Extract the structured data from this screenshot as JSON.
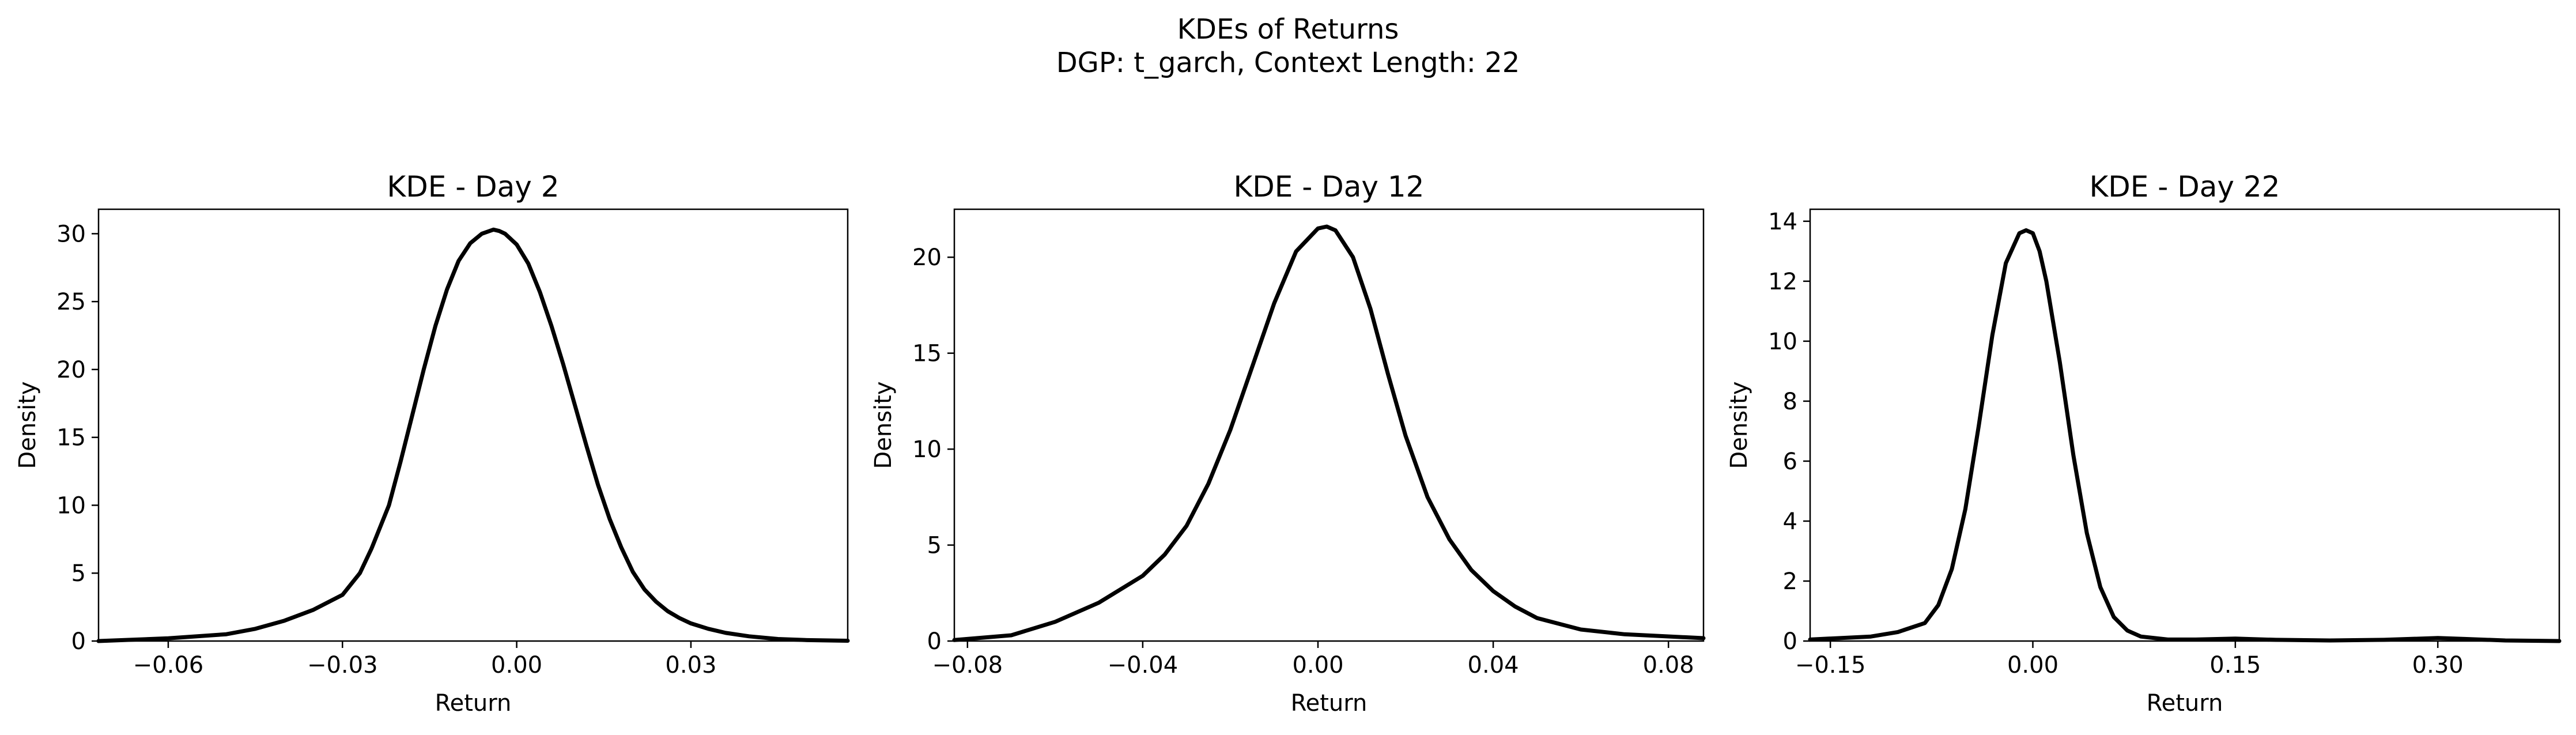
{
  "figure": {
    "title_line1": "KDEs of Returns",
    "title_line2": "DGP: t_garch, Context Length: 22"
  },
  "chart_data": [
    {
      "type": "line",
      "title": "KDE - Day 2",
      "xlabel": "Return",
      "ylabel": "Density",
      "xlim": [
        -0.072,
        0.057
      ],
      "ylim": [
        0,
        31.8
      ],
      "xticks": [
        -0.06,
        -0.03,
        0.0,
        0.03
      ],
      "xtick_labels": [
        "−0.06",
        "−0.03",
        "0.00",
        "0.03"
      ],
      "yticks": [
        0,
        5,
        10,
        15,
        20,
        25,
        30
      ],
      "ytick_labels": [
        "0",
        "5",
        "10",
        "15",
        "20",
        "25",
        "30"
      ],
      "grid": false,
      "series": [
        {
          "color": "#000000",
          "x": [
            -0.072,
            -0.06,
            -0.05,
            -0.045,
            -0.04,
            -0.035,
            -0.03,
            -0.027,
            -0.025,
            -0.022,
            -0.02,
            -0.018,
            -0.016,
            -0.014,
            -0.012,
            -0.01,
            -0.008,
            -0.006,
            -0.004,
            -0.003,
            -0.002,
            0.0,
            0.002,
            0.004,
            0.006,
            0.008,
            0.01,
            0.012,
            0.014,
            0.016,
            0.018,
            0.02,
            0.022,
            0.024,
            0.026,
            0.028,
            0.03,
            0.033,
            0.036,
            0.04,
            0.045,
            0.05,
            0.057
          ],
          "y": [
            0.0,
            0.2,
            0.5,
            0.9,
            1.5,
            2.3,
            3.4,
            5.0,
            6.8,
            10.0,
            13.2,
            16.6,
            20.0,
            23.2,
            25.9,
            28.0,
            29.3,
            30.0,
            30.3,
            30.2,
            30.0,
            29.2,
            27.8,
            25.7,
            23.2,
            20.4,
            17.4,
            14.4,
            11.5,
            9.0,
            6.9,
            5.1,
            3.8,
            2.9,
            2.2,
            1.7,
            1.3,
            0.9,
            0.6,
            0.35,
            0.15,
            0.07,
            0.02
          ]
        }
      ]
    },
    {
      "type": "line",
      "title": "KDE - Day 12",
      "xlabel": "Return",
      "ylabel": "Density",
      "xlim": [
        -0.083,
        0.088
      ],
      "ylim": [
        0,
        22.5
      ],
      "xticks": [
        -0.08,
        -0.04,
        0.0,
        0.04,
        0.08
      ],
      "xtick_labels": [
        "−0.08",
        "−0.04",
        "0.00",
        "0.04",
        "0.08"
      ],
      "yticks": [
        0,
        5,
        10,
        15,
        20
      ],
      "ytick_labels": [
        "0",
        "5",
        "10",
        "15",
        "20"
      ],
      "grid": false,
      "series": [
        {
          "color": "#000000",
          "x": [
            -0.083,
            -0.07,
            -0.06,
            -0.05,
            -0.04,
            -0.035,
            -0.03,
            -0.025,
            -0.02,
            -0.015,
            -0.01,
            -0.005,
            0.0,
            0.002,
            0.004,
            0.008,
            0.012,
            0.016,
            0.02,
            0.025,
            0.03,
            0.035,
            0.04,
            0.045,
            0.05,
            0.06,
            0.07,
            0.088
          ],
          "y": [
            0.05,
            0.3,
            1.0,
            2.0,
            3.4,
            4.5,
            6.0,
            8.2,
            11.0,
            14.3,
            17.6,
            20.3,
            21.5,
            21.6,
            21.4,
            20.0,
            17.3,
            13.9,
            10.7,
            7.5,
            5.3,
            3.7,
            2.6,
            1.8,
            1.2,
            0.6,
            0.35,
            0.15
          ]
        }
      ]
    },
    {
      "type": "line",
      "title": "KDE - Day 22",
      "xlabel": "Return",
      "ylabel": "Density",
      "xlim": [
        -0.165,
        0.39
      ],
      "ylim": [
        0,
        14.4
      ],
      "xticks": [
        -0.15,
        0.0,
        0.15,
        0.3
      ],
      "xtick_labels": [
        "−0.15",
        "0.00",
        "0.15",
        "0.30"
      ],
      "yticks": [
        0,
        2,
        4,
        6,
        8,
        10,
        12,
        14
      ],
      "ytick_labels": [
        "0",
        "2",
        "4",
        "6",
        "8",
        "10",
        "12",
        "14"
      ],
      "grid": false,
      "series": [
        {
          "color": "#000000",
          "x": [
            -0.165,
            -0.12,
            -0.1,
            -0.08,
            -0.07,
            -0.06,
            -0.05,
            -0.04,
            -0.03,
            -0.02,
            -0.01,
            -0.005,
            0.0,
            0.005,
            0.01,
            0.02,
            0.03,
            0.04,
            0.05,
            0.06,
            0.07,
            0.08,
            0.1,
            0.12,
            0.15,
            0.18,
            0.22,
            0.26,
            0.3,
            0.32,
            0.35,
            0.39
          ],
          "y": [
            0.05,
            0.15,
            0.3,
            0.6,
            1.2,
            2.4,
            4.4,
            7.2,
            10.2,
            12.6,
            13.6,
            13.7,
            13.6,
            13.0,
            12.0,
            9.3,
            6.2,
            3.6,
            1.8,
            0.8,
            0.35,
            0.15,
            0.05,
            0.05,
            0.08,
            0.04,
            0.02,
            0.04,
            0.1,
            0.07,
            0.02,
            0.0
          ]
        }
      ]
    }
  ]
}
